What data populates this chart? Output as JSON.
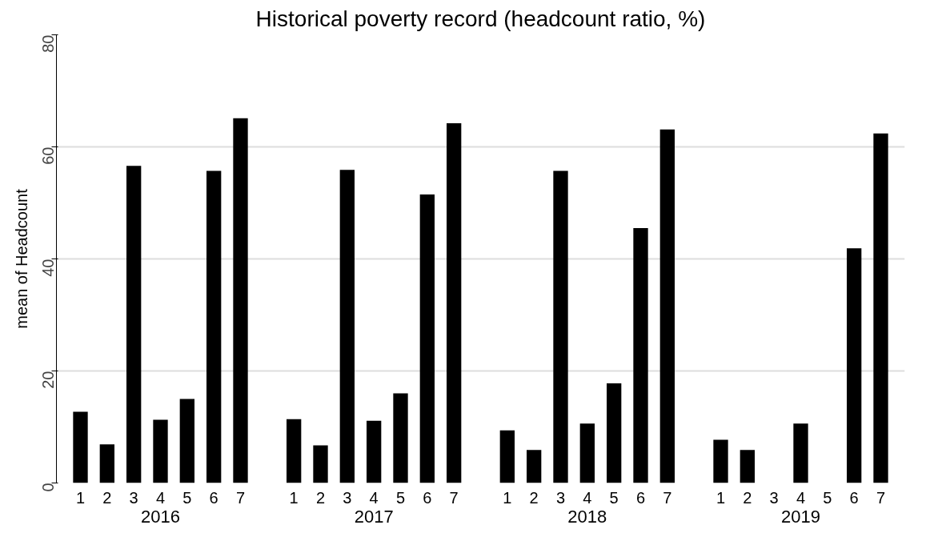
{
  "chart_data": {
    "type": "bar",
    "title": "Historical poverty record (headcount ratio, %)",
    "ylabel": "mean of Headcount",
    "categories": [
      "1",
      "2",
      "3",
      "4",
      "5",
      "6",
      "7",
      null,
      "1",
      "2",
      "3",
      "4",
      "5",
      "6",
      "7",
      null,
      "1",
      "2",
      "3",
      "4",
      "5",
      "6",
      "7",
      null,
      "1",
      "2",
      "3",
      "4",
      "5",
      "6",
      "7"
    ],
    "values": [
      12.7,
      6.9,
      56.6,
      11.3,
      15.0,
      55.7,
      65.1,
      null,
      11.4,
      6.7,
      55.9,
      11.1,
      16.0,
      51.5,
      64.2,
      null,
      9.4,
      5.9,
      55.7,
      10.6,
      17.8,
      45.5,
      63.1,
      null,
      7.7,
      5.9,
      null,
      10.6,
      null,
      41.9,
      62.4
    ],
    "color": "#000000",
    "annotations": [
      "2016",
      "2017",
      "2018",
      "2019"
    ],
    "ylim": [
      0,
      80
    ],
    "yticks": [
      0,
      20,
      40,
      60,
      80
    ],
    "grid": "y"
  }
}
